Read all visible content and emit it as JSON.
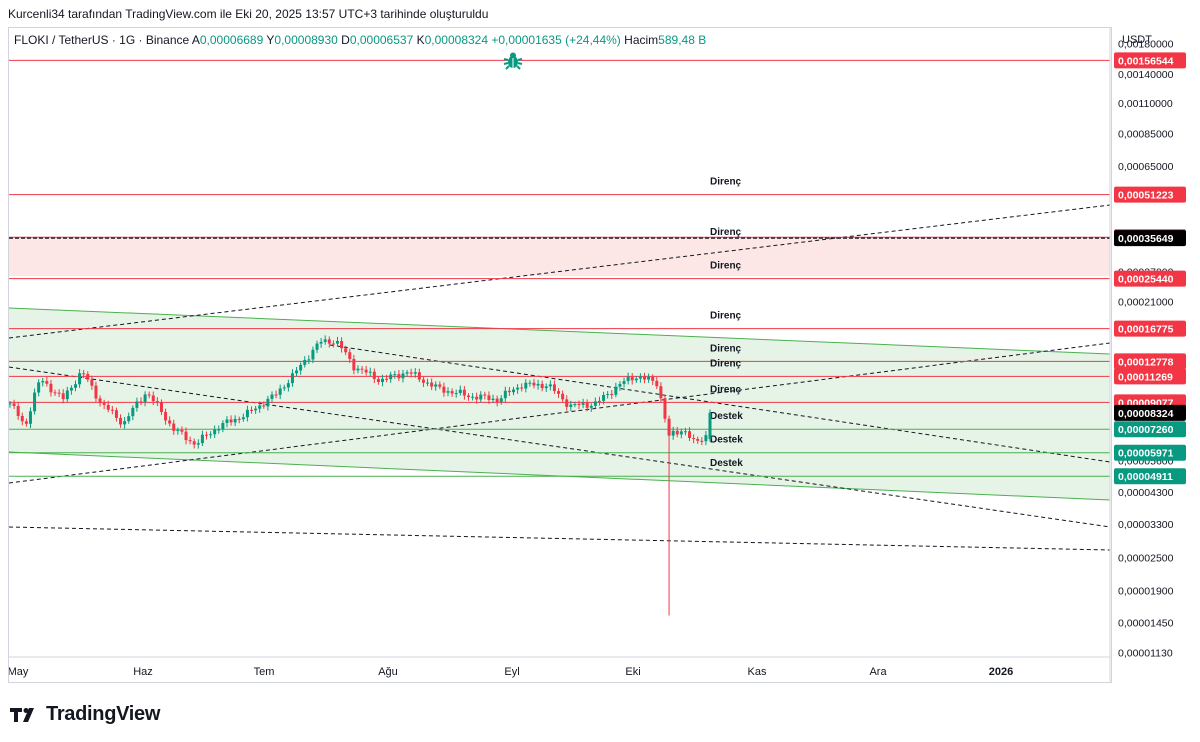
{
  "caption": "Kurcenli34 tarafından TradingView.com ile Eki 20, 2025 13:57 UTC+3 tarihinde oluşturuldu",
  "legend": {
    "symbol": "FLOKI / TetherUS · 1G · Binance",
    "open_label": "A",
    "open": "0,00006689",
    "high_label": "Y",
    "high": "0,00008930",
    "low_label": "D",
    "low": "0,00006537",
    "close_label": "K",
    "close": "0,00008324",
    "change": "+0,00001635 (+24,44%)",
    "volume_label": "Hacim",
    "volume": "589,48 B"
  },
  "currency": "USDT",
  "brand": "TradingView",
  "icons": {
    "bug": "bug-icon",
    "logo": "tradingview-logo-icon"
  },
  "colors": {
    "up": "#089981",
    "down": "#f23645",
    "resistance": "#f23645",
    "support": "#4caf50",
    "channel_fill": "#e0f2e3",
    "zone_fill": "#fde6e6",
    "price_tag": "#000000",
    "support_tag": "#089981",
    "resistance_tag": "#f23645"
  },
  "chart_data": {
    "type": "candlestick",
    "symbol": "FLOKI/USDT",
    "timeframe": "1D",
    "scale": "log",
    "ylim": [
      1.09e-05,
      0.00205
    ],
    "x_ticks": [
      "May",
      "Haz",
      "Tem",
      "Ağu",
      "Eyl",
      "Eki",
      "Kas",
      "Ara",
      "2026"
    ],
    "y_ticks": [
      {
        "v": 0.0018,
        "t": "0,00180000"
      },
      {
        "v": 0.0014,
        "t": "0,00140000"
      },
      {
        "v": 0.0011,
        "t": "0,00110000"
      },
      {
        "v": 0.00085,
        "t": "0,00085000"
      },
      {
        "v": 0.00065,
        "t": "0,00065000"
      },
      {
        "v": 0.00027,
        "t": "0,00027000"
      },
      {
        "v": 0.00021,
        "t": "0,00021000"
      },
      {
        "v": 4.3e-05,
        "t": "0,00004300"
      },
      {
        "v": 3.3e-05,
        "t": "0,00003300"
      },
      {
        "v": 2.5e-05,
        "t": "0,00002500"
      },
      {
        "v": 1.9e-05,
        "t": "0,00001900"
      },
      {
        "v": 1.45e-05,
        "t": "0,00001450"
      },
      {
        "v": 1.13e-05,
        "t": "0,00001130"
      }
    ],
    "levels": [
      {
        "v": 0.00156544,
        "t": "0,00156544",
        "kind": "resistance",
        "label": ""
      },
      {
        "v": 0.00051223,
        "t": "0,00051223",
        "kind": "resistance",
        "label": "Direnç"
      },
      {
        "v": 0.00035904,
        "t": "0,00035904",
        "kind": "resistance",
        "label": ""
      },
      {
        "v": 0.0002544,
        "t": "0,00025440",
        "kind": "resistance",
        "label": "Direnç"
      },
      {
        "v": 0.00016775,
        "t": "0,00016775",
        "kind": "resistance",
        "label": "Direnç"
      },
      {
        "v": 0.00012778,
        "t": "0,00012778",
        "kind": "resistance",
        "label": "Direnç"
      },
      {
        "v": 0.00011269,
        "t": "0,00011269",
        "kind": "resistance",
        "label": "Direnç"
      },
      {
        "v": 9.077e-05,
        "t": "0,00009077",
        "kind": "resistance",
        "label": "Direnç"
      },
      {
        "v": 7.26e-05,
        "t": "0,00007260",
        "kind": "support",
        "label": "Destek"
      },
      {
        "v": 5.971e-05,
        "t": "0,00005971",
        "kind": "support",
        "label": "Destek"
      },
      {
        "v": 4.911e-05,
        "t": "0,00004911",
        "kind": "support",
        "label": "Destek"
      }
    ],
    "dashed_level": {
      "v": 0.00035649,
      "t": "0,00035649",
      "label": "Direnç"
    },
    "current_price": {
      "v": 8.324e-05,
      "t": "0,00008324"
    },
    "resistance_zone": [
      0.00026,
      0.00035904
    ],
    "extra_labels": [
      {
        "v": 5.6e-05,
        "t": "0,00005600"
      }
    ]
  }
}
